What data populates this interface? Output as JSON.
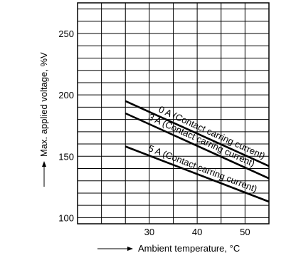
{
  "chart_data": {
    "type": "line",
    "title": "",
    "xlabel": "Ambient temperature, °C",
    "ylabel": "Max. applied voltage, %V",
    "xlim": [
      15,
      55
    ],
    "ylim": [
      95,
      275
    ],
    "x_ticks": [
      30,
      40,
      50
    ],
    "y_ticks": [
      100,
      150,
      200,
      250
    ],
    "grid": true,
    "series": [
      {
        "name": "0 A (Contact carring current)",
        "x": [
          25,
          55
        ],
        "y": [
          195,
          142
        ]
      },
      {
        "name": "3 A (Contact carring current)",
        "x": [
          25,
          55
        ],
        "y": [
          185,
          132
        ]
      },
      {
        "name": "5 A (Contact carring current)",
        "x": [
          25,
          55
        ],
        "y": [
          158,
          113
        ]
      }
    ]
  }
}
